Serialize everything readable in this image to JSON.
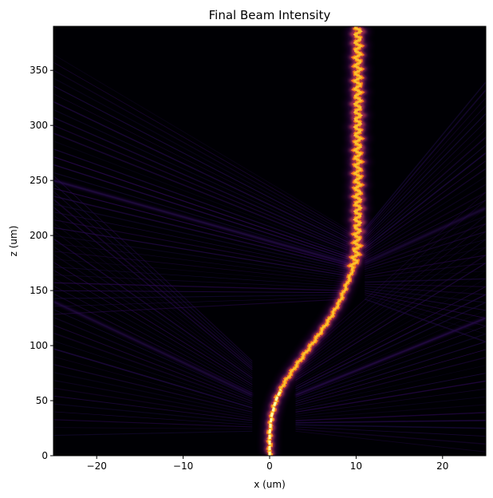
{
  "chart_data": {
    "type": "heatmap",
    "title": "Final Beam Intensity",
    "xlabel": "x (um)",
    "ylabel": "z (um)",
    "xlim": [
      -25,
      25
    ],
    "ylim": [
      0,
      390
    ],
    "xticks": [
      -20,
      -10,
      0,
      10,
      20
    ],
    "yticks": [
      0,
      50,
      100,
      150,
      200,
      250,
      300,
      350
    ],
    "colormap": "inferno",
    "background": "#000004",
    "beam_path": {
      "z": [
        0,
        20,
        35,
        50,
        65,
        80,
        95,
        110,
        125,
        140,
        155,
        165,
        175,
        190,
        220,
        260,
        300,
        340,
        390
      ],
      "x": [
        0.0,
        0.0,
        0.2,
        0.7,
        1.6,
        2.9,
        4.3,
        5.7,
        7.0,
        8.1,
        8.9,
        9.4,
        9.8,
        10.1,
        10.2,
        10.2,
        10.2,
        10.2,
        10.2
      ]
    },
    "side_streaks": [
      {
        "from": [
          -25,
          140
        ],
        "to": [
          -2,
          55
        ]
      },
      {
        "from": [
          25,
          125
        ],
        "to": [
          3,
          55
        ]
      },
      {
        "from": [
          -25,
          250
        ],
        "to": [
          9,
          175
        ]
      },
      {
        "from": [
          25,
          225
        ],
        "to": [
          11,
          175
        ]
      }
    ],
    "grid": false,
    "legend": "none"
  }
}
